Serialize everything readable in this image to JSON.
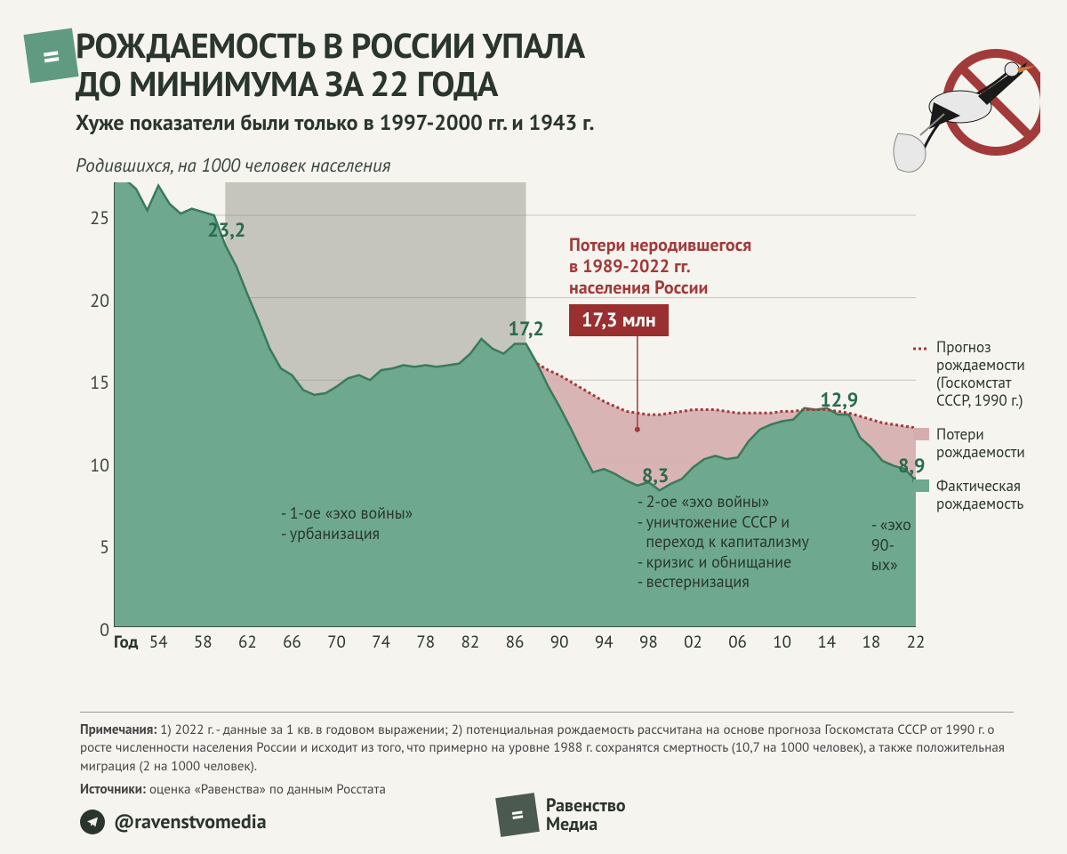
{
  "title_l1": "РОЖДАЕМОСТЬ В РОССИИ УПАЛА",
  "title_l2": "ДО МИНИМУМА ЗА 22 ГОДА",
  "subtitle": "Хуже показатели были только в 1997-2000 гг. и 1943 г.",
  "ylabel": "Родившихся, на 1000 человек населения",
  "chart": {
    "type": "area",
    "x_years": {
      "start": 1950,
      "end": 2022
    },
    "ylim": [
      0,
      27
    ],
    "yticks": [
      0,
      5,
      10,
      15,
      20,
      25
    ],
    "grid_color": "#c8c4b8",
    "bg": "#f5f4ef",
    "xticks": [
      54,
      58,
      62,
      66,
      70,
      74,
      78,
      82,
      86,
      90,
      94,
      98,
      2,
      6,
      10,
      14,
      18,
      22
    ],
    "xtick_years": [
      1954,
      1958,
      1962,
      1966,
      1970,
      1974,
      1978,
      1982,
      1986,
      1990,
      1994,
      1998,
      2002,
      2006,
      2010,
      2014,
      2018,
      2022
    ],
    "xlabel_first": "Год",
    "actual": {
      "color_fill": "#6ea98f",
      "color_line": "#3a7a5c",
      "points": [
        [
          1950,
          27.0
        ],
        [
          1951,
          27.2
        ],
        [
          1952,
          26.6
        ],
        [
          1953,
          25.3
        ],
        [
          1954,
          26.8
        ],
        [
          1955,
          25.7
        ],
        [
          1956,
          25.1
        ],
        [
          1957,
          25.4
        ],
        [
          1958,
          25.2
        ],
        [
          1959,
          25.0
        ],
        [
          1960,
          23.2
        ],
        [
          1961,
          21.9
        ],
        [
          1962,
          20.2
        ],
        [
          1963,
          18.6
        ],
        [
          1964,
          16.9
        ],
        [
          1965,
          15.7
        ],
        [
          1966,
          15.3
        ],
        [
          1967,
          14.4
        ],
        [
          1968,
          14.1
        ],
        [
          1969,
          14.2
        ],
        [
          1970,
          14.6
        ],
        [
          1971,
          15.1
        ],
        [
          1972,
          15.3
        ],
        [
          1973,
          15.0
        ],
        [
          1974,
          15.6
        ],
        [
          1975,
          15.7
        ],
        [
          1976,
          15.9
        ],
        [
          1977,
          15.8
        ],
        [
          1978,
          15.9
        ],
        [
          1979,
          15.8
        ],
        [
          1980,
          15.9
        ],
        [
          1981,
          16.0
        ],
        [
          1982,
          16.6
        ],
        [
          1983,
          17.5
        ],
        [
          1984,
          16.9
        ],
        [
          1985,
          16.6
        ],
        [
          1986,
          17.2
        ],
        [
          1987,
          17.2
        ],
        [
          1988,
          16.0
        ],
        [
          1989,
          14.6
        ],
        [
          1990,
          13.4
        ],
        [
          1991,
          12.1
        ],
        [
          1992,
          10.7
        ],
        [
          1993,
          9.4
        ],
        [
          1994,
          9.6
        ],
        [
          1995,
          9.3
        ],
        [
          1996,
          8.9
        ],
        [
          1997,
          8.6
        ],
        [
          1998,
          8.8
        ],
        [
          1999,
          8.3
        ],
        [
          2000,
          8.7
        ],
        [
          2001,
          9.0
        ],
        [
          2002,
          9.7
        ],
        [
          2003,
          10.2
        ],
        [
          2004,
          10.4
        ],
        [
          2005,
          10.2
        ],
        [
          2006,
          10.3
        ],
        [
          2007,
          11.3
        ],
        [
          2008,
          12.0
        ],
        [
          2009,
          12.3
        ],
        [
          2010,
          12.5
        ],
        [
          2011,
          12.6
        ],
        [
          2012,
          13.3
        ],
        [
          2013,
          13.2
        ],
        [
          2014,
          13.3
        ],
        [
          2015,
          12.9
        ],
        [
          2016,
          12.9
        ],
        [
          2017,
          11.5
        ],
        [
          2018,
          10.9
        ],
        [
          2019,
          10.1
        ],
        [
          2020,
          9.8
        ],
        [
          2021,
          9.6
        ],
        [
          2022,
          8.9
        ]
      ]
    },
    "forecast": {
      "color_line": "#a53a3a",
      "dash": "3,3",
      "loss_fill": "#d6adad",
      "points": [
        [
          1988,
          16.0
        ],
        [
          1989,
          15.6
        ],
        [
          1990,
          15.3
        ],
        [
          1991,
          14.9
        ],
        [
          1992,
          14.5
        ],
        [
          1993,
          14.1
        ],
        [
          1994,
          13.7
        ],
        [
          1995,
          13.4
        ],
        [
          1996,
          13.1
        ],
        [
          1997,
          13.0
        ],
        [
          1998,
          12.9
        ],
        [
          1999,
          12.9
        ],
        [
          2000,
          13.0
        ],
        [
          2001,
          13.1
        ],
        [
          2002,
          13.2
        ],
        [
          2003,
          13.2
        ],
        [
          2004,
          13.2
        ],
        [
          2005,
          13.1
        ],
        [
          2006,
          13.0
        ],
        [
          2007,
          13.0
        ],
        [
          2008,
          13.0
        ],
        [
          2009,
          13.0
        ],
        [
          2010,
          13.1
        ],
        [
          2011,
          13.1
        ],
        [
          2012,
          13.2
        ],
        [
          2013,
          13.2
        ],
        [
          2014,
          13.2
        ],
        [
          2015,
          13.1
        ],
        [
          2016,
          13.0
        ],
        [
          2017,
          12.8
        ],
        [
          2018,
          12.6
        ],
        [
          2019,
          12.4
        ],
        [
          2020,
          12.3
        ],
        [
          2021,
          12.2
        ],
        [
          2022,
          12.1
        ]
      ]
    },
    "shade_period": {
      "from": 1960,
      "to": 1987,
      "color": "rgba(130,130,120,0.42)"
    },
    "value_labels": [
      {
        "year": 1960,
        "v": "23,2"
      },
      {
        "year": 1987,
        "v": "17,2"
      },
      {
        "year": 1999,
        "v": "8,3"
      },
      {
        "year": 2015,
        "v": "12,9"
      },
      {
        "year": 2022,
        "v": "8,9"
      }
    ],
    "annotations": [
      {
        "at_year": 1965,
        "y": 7.5,
        "lines": [
          "- 1-ое «эхо войны»",
          "- урбанизация"
        ]
      },
      {
        "at_year": 1997,
        "y": 8.2,
        "lines": [
          "- 2-ое «эхо войны»",
          "- уничтожение СССР и",
          "  переход к капитализму",
          "- кризис и обнищание",
          "- вестернизация"
        ]
      },
      {
        "at_year": 2018,
        "y": 6.8,
        "lines": [
          "- «эхо",
          "90-ых»"
        ]
      }
    ]
  },
  "loss_title_l1": "Потери неродившегося",
  "loss_title_l2": "в 1989-2022 гг.",
  "loss_title_l3": "населения России",
  "loss_value": "17,3 млн",
  "legend": {
    "forecast": "Прогноз рождаемости (Госкомстат СССР, 1990 г.)",
    "loss": "Потери рождаемости",
    "actual": "Фактическая рождаемость"
  },
  "notes_label": "Примечания:",
  "notes_text": " 1) 2022 г. - данные за 1 кв. в годовом выражении; 2) потенциальная рождаемость рассчитана на основе прогноза Госкомстата СССР от 1990 г. о росте численности населения России и исходит из того, что примерно на уровне 1988 г. сохранятся смертность (10,7 на 1000 человек), а также положительная миграция (2 на 1000 человек).",
  "sources_label": "Источники:",
  "sources_text": " оценка «Равенства» по данным Росстата",
  "handle": "@ravenstvomedia",
  "brand_l1": "Равенство",
  "brand_l2": "Медиа"
}
